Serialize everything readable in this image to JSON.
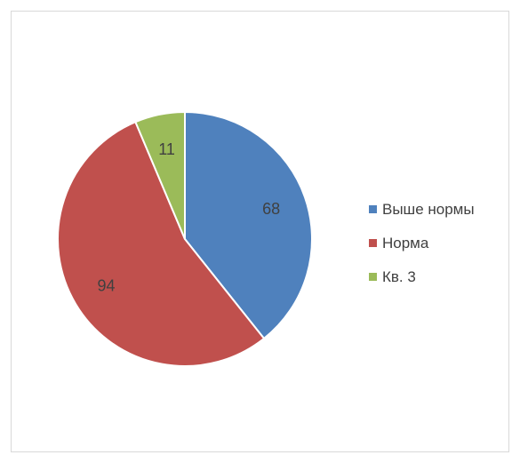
{
  "chart_data": {
    "type": "pie",
    "categories": [
      "Выше нормы",
      "Норма",
      "Кв. 3"
    ],
    "values": [
      68,
      94,
      11
    ],
    "colors": [
      "#4f81bd",
      "#c0504d",
      "#9bbb59"
    ],
    "data_labels": [
      "68",
      "94",
      "11"
    ],
    "legend_position": "right",
    "start_angle": "top",
    "direction": "clockwise"
  }
}
